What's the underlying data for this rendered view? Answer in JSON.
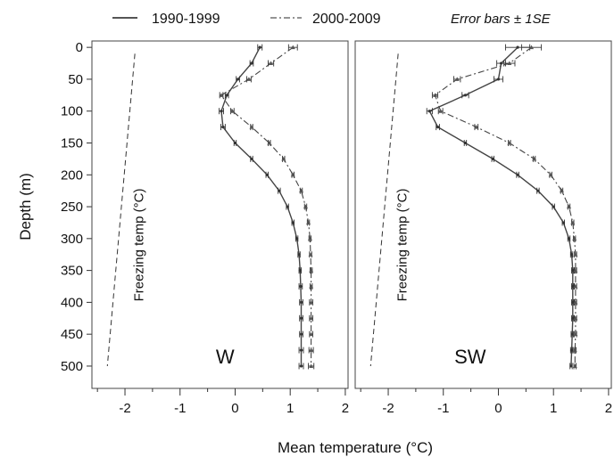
{
  "chart_data": {
    "type": "line",
    "xlabel": "Mean temperature (°C)",
    "ylabel": "Depth (m)",
    "xlim": [
      -2.6,
      2.05
    ],
    "ylim": [
      -10,
      535
    ],
    "y_inverted": true,
    "x_ticks": [
      -2,
      -1,
      0,
      1,
      2
    ],
    "y_ticks": [
      0,
      50,
      100,
      150,
      200,
      250,
      300,
      350,
      400,
      450,
      500
    ],
    "grid": false,
    "legend": {
      "position": "top",
      "entries": [
        {
          "label": "1990-1999",
          "style": "solid"
        },
        {
          "label": "2000-2009",
          "style": "dash-dot"
        }
      ],
      "note": "Error bars ± 1SE"
    },
    "depths": [
      0,
      25,
      50,
      75,
      100,
      125,
      150,
      175,
      200,
      225,
      250,
      275,
      300,
      325,
      350,
      375,
      400,
      425,
      450,
      475,
      500
    ],
    "colors": {
      "line": "#444444",
      "axis": "#333333",
      "freezing": "#333333"
    },
    "panels": [
      {
        "name": "W",
        "freezing_label": "Freezing temp (°C)",
        "freezing_line": {
          "x": [
            -1.82,
            -2.32
          ],
          "y": [
            10,
            500
          ]
        },
        "series": [
          {
            "name": "1990-1999",
            "values": [
              0.45,
              0.3,
              0.05,
              -0.15,
              -0.25,
              -0.22,
              0.0,
              0.3,
              0.58,
              0.8,
              0.95,
              1.05,
              1.12,
              1.16,
              1.18,
              1.19,
              1.2,
              1.2,
              1.2,
              1.2,
              1.2
            ],
            "se": [
              0.04,
              0.03,
              0.03,
              0.03,
              0.04,
              0.04,
              0.02,
              0.02,
              0.02,
              0.02,
              0.02,
              0.02,
              0.02,
              0.02,
              0.02,
              0.03,
              0.03,
              0.03,
              0.03,
              0.04,
              0.04
            ]
          },
          {
            "name": "2000-2009",
            "values": [
              1.05,
              0.65,
              0.25,
              -0.25,
              -0.05,
              0.3,
              0.62,
              0.88,
              1.05,
              1.2,
              1.28,
              1.33,
              1.36,
              1.37,
              1.38,
              1.38,
              1.38,
              1.38,
              1.38,
              1.38,
              1.38
            ],
            "se": [
              0.08,
              0.05,
              0.04,
              0.03,
              0.03,
              0.02,
              0.02,
              0.02,
              0.02,
              0.02,
              0.02,
              0.02,
              0.02,
              0.02,
              0.02,
              0.02,
              0.03,
              0.03,
              0.03,
              0.04,
              0.05
            ]
          }
        ]
      },
      {
        "name": "SW",
        "freezing_label": "Freezing temp (°C)",
        "freezing_line": {
          "x": [
            -1.82,
            -2.32
          ],
          "y": [
            10,
            500
          ]
        },
        "series": [
          {
            "name": "1990-1999",
            "values": [
              0.35,
              0.05,
              0.0,
              -0.6,
              -1.25,
              -1.1,
              -0.6,
              -0.1,
              0.35,
              0.72,
              1.0,
              1.18,
              1.28,
              1.33,
              1.35,
              1.35,
              1.35,
              1.35,
              1.34,
              1.33,
              1.32
            ],
            "se": [
              0.22,
              0.08,
              0.08,
              0.06,
              0.05,
              0.03,
              0.02,
              0.02,
              0.02,
              0.02,
              0.02,
              0.02,
              0.02,
              0.02,
              0.02,
              0.02,
              0.02,
              0.02,
              0.02,
              0.02,
              0.02
            ]
          },
          {
            "name": "2000-2009",
            "values": [
              0.6,
              0.2,
              -0.75,
              -1.15,
              -1.05,
              -0.4,
              0.2,
              0.65,
              0.95,
              1.15,
              1.28,
              1.35,
              1.38,
              1.4,
              1.4,
              1.4,
              1.4,
              1.4,
              1.4,
              1.39,
              1.39
            ],
            "se": [
              0.18,
              0.1,
              0.06,
              0.05,
              0.04,
              0.03,
              0.02,
              0.02,
              0.02,
              0.02,
              0.02,
              0.02,
              0.02,
              0.02,
              0.02,
              0.02,
              0.02,
              0.02,
              0.02,
              0.02,
              0.02
            ]
          }
        ]
      }
    ]
  }
}
